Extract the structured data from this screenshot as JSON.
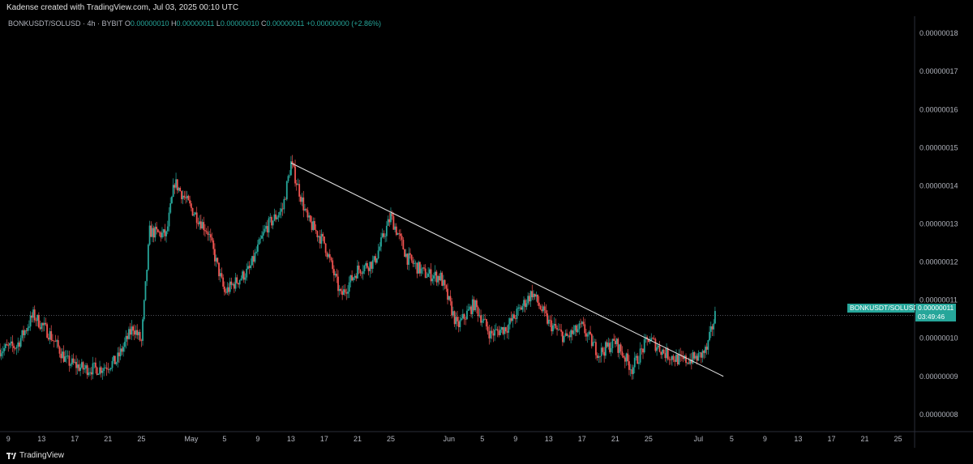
{
  "header": {
    "attribution": "Kadense created with TradingView.com, Jul 03, 2025 00:10 UTC"
  },
  "legend": {
    "symbol": "BONKUSDT/SOLUSD · 4h · BYBIT",
    "o_label": "O",
    "o_value": "0.00000010",
    "h_label": "H",
    "h_value": "0.00000011",
    "l_label": "L",
    "l_value": "0.00000010",
    "c_label": "C",
    "c_value": "0.00000011",
    "change": "+0.00000000 (+2.86%)"
  },
  "price_tag": {
    "name": "BONKUSDT/SOLUSD",
    "price": "0.00000011",
    "timer": "03:49:46"
  },
  "footer": {
    "brand": "TradingView"
  },
  "colors": {
    "up": "#26a69a",
    "down": "#ef5350",
    "background": "#000000",
    "trendline": "#e0e0e0",
    "axis_text": "#b2b5be"
  },
  "chart_data": {
    "type": "candlestick",
    "symbol": "BONKUSDT/SOLUSD",
    "interval": "4h",
    "exchange": "BYBIT",
    "y_axis": {
      "position": "right",
      "ticks": [
        "0.00000018",
        "0.00000017",
        "0.00000016",
        "0.00000015",
        "0.00000014",
        "0.00000013",
        "0.00000012",
        "0.00000011",
        "0.00000010",
        "0.00000009",
        "0.00000008"
      ],
      "range": [
        7.55e-08,
        1.845e-07
      ]
    },
    "x_axis": {
      "ticks": [
        "9",
        "13",
        "17",
        "21",
        "25",
        "May",
        "5",
        "9",
        "13",
        "17",
        "21",
        "25",
        "Jun",
        "5",
        "9",
        "13",
        "17",
        "21",
        "25",
        "Jul",
        "5",
        "9",
        "13",
        "17",
        "21",
        "25"
      ],
      "range": [
        "2025-04-08",
        "2025-07-27"
      ]
    },
    "last_price_line": 1.06e-07,
    "anchors": [
      [
        "2025-04-08",
        9.7e-08
      ],
      [
        "2025-04-10",
        9.8e-08
      ],
      [
        "2025-04-12",
        1.06e-07
      ],
      [
        "2025-04-14",
        1.01e-07
      ],
      [
        "2025-04-16",
        9.4e-08
      ],
      [
        "2025-04-18",
        9.2e-08
      ],
      [
        "2025-04-20",
        9.2e-08
      ],
      [
        "2025-04-22",
        9.4e-08
      ],
      [
        "2025-04-24",
        1.03e-07
      ],
      [
        "2025-04-25",
        9.9e-08
      ],
      [
        "2025-04-26",
        1.28e-07
      ],
      [
        "2025-04-28",
        1.27e-07
      ],
      [
        "2025-04-29",
        1.41e-07
      ],
      [
        "2025-05-01",
        1.34e-07
      ],
      [
        "2025-05-03",
        1.28e-07
      ],
      [
        "2025-05-05",
        1.12e-07
      ],
      [
        "2025-05-06",
        1.14e-07
      ],
      [
        "2025-05-08",
        1.18e-07
      ],
      [
        "2025-05-10",
        1.29e-07
      ],
      [
        "2025-05-12",
        1.34e-07
      ],
      [
        "2025-05-13",
        1.46e-07
      ],
      [
        "2025-05-15",
        1.31e-07
      ],
      [
        "2025-05-17",
        1.25e-07
      ],
      [
        "2025-05-19",
        1.11e-07
      ],
      [
        "2025-05-21",
        1.18e-07
      ],
      [
        "2025-05-23",
        1.2e-07
      ],
      [
        "2025-05-25",
        1.32e-07
      ],
      [
        "2025-05-27",
        1.21e-07
      ],
      [
        "2025-05-29",
        1.17e-07
      ],
      [
        "2025-05-31",
        1.16e-07
      ],
      [
        "2025-06-02",
        1.03e-07
      ],
      [
        "2025-06-04",
        1.09e-07
      ],
      [
        "2025-06-06",
        1.01e-07
      ],
      [
        "2025-06-08",
        1.03e-07
      ],
      [
        "2025-06-11",
        1.12e-07
      ],
      [
        "2025-06-13",
        1.04e-07
      ],
      [
        "2025-06-15",
        1e-07
      ],
      [
        "2025-06-17",
        1.03e-07
      ],
      [
        "2025-06-19",
        9.6e-08
      ],
      [
        "2025-06-21",
        9.9e-08
      ],
      [
        "2025-06-23",
        9.2e-08
      ],
      [
        "2025-06-25",
        1e-07
      ],
      [
        "2025-06-27",
        9.6e-08
      ],
      [
        "2025-06-29",
        9.4e-08
      ],
      [
        "2025-07-01",
        9.5e-08
      ],
      [
        "2025-07-02",
        9.7e-08
      ],
      [
        "2025-07-03",
        1.06e-07
      ]
    ],
    "trendline": {
      "start": [
        "2025-05-13",
        1.46e-07
      ],
      "end": [
        "2025-07-04",
        9e-08
      ]
    }
  }
}
